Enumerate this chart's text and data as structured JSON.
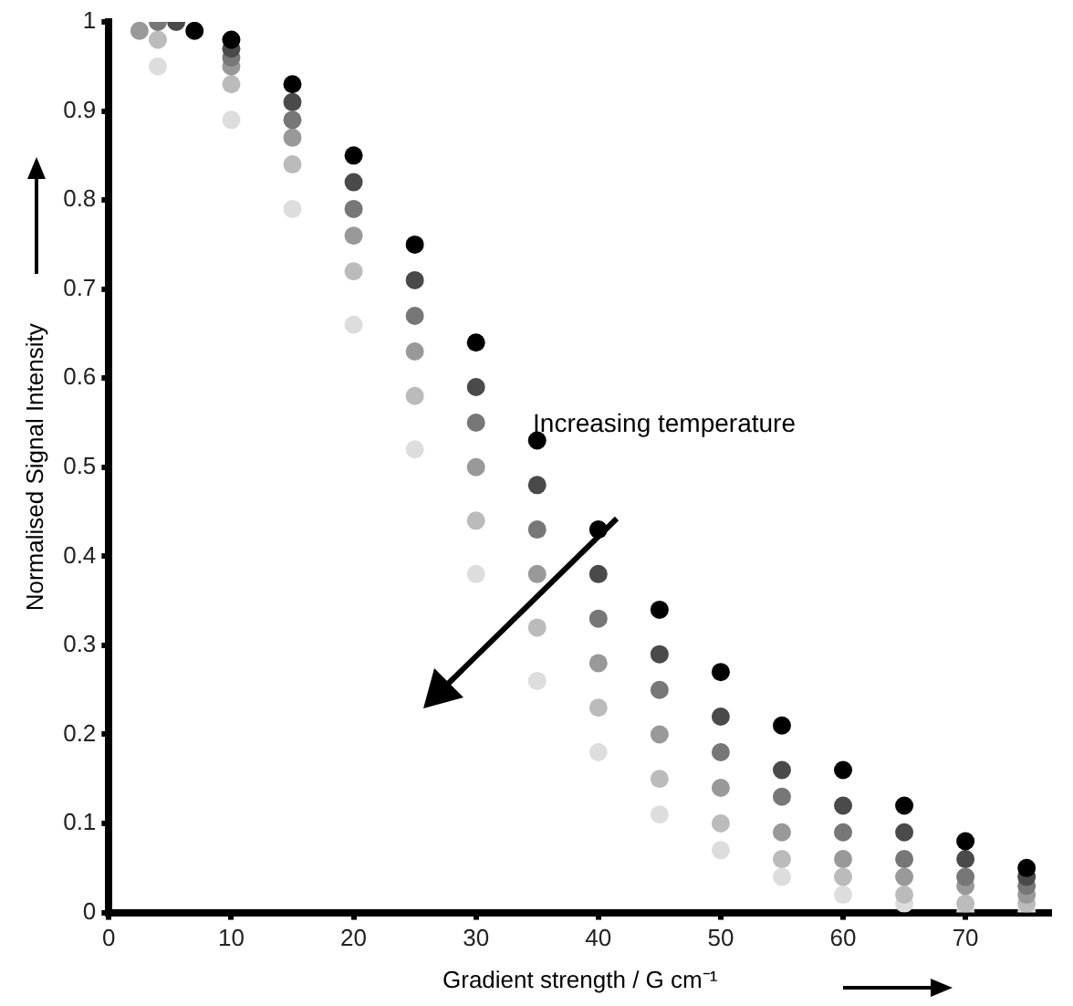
{
  "chart_data": {
    "type": "scatter",
    "xlabel": "Gradient strength / G cm⁻¹",
    "ylabel": "Normalised Signal Intensity",
    "x": [
      4,
      10,
      15,
      20,
      25,
      30,
      35,
      40,
      45,
      50,
      55,
      60,
      65,
      70,
      75
    ],
    "series": [
      {
        "color": "#000000",
        "x": [
          7,
          10,
          15,
          20,
          25,
          30,
          35,
          40,
          45,
          50,
          55,
          60,
          65,
          70,
          75
        ],
        "values": [
          0.99,
          0.98,
          0.93,
          0.85,
          0.75,
          0.64,
          0.53,
          0.43,
          0.34,
          0.27,
          0.21,
          0.16,
          0.12,
          0.08,
          0.05
        ]
      },
      {
        "color": "#4a4a4a",
        "x": [
          5.5,
          10,
          15,
          20,
          25,
          30,
          35,
          40,
          45,
          50,
          55,
          60,
          65,
          70,
          75
        ],
        "values": [
          1.0,
          0.97,
          0.91,
          0.82,
          0.71,
          0.59,
          0.48,
          0.38,
          0.29,
          0.22,
          0.16,
          0.12,
          0.09,
          0.06,
          0.04
        ]
      },
      {
        "color": "#777777",
        "x": [
          4,
          10,
          15,
          20,
          25,
          30,
          35,
          40,
          45,
          50,
          55,
          60,
          65,
          70,
          75
        ],
        "values": [
          1.0,
          0.96,
          0.89,
          0.79,
          0.67,
          0.55,
          0.43,
          0.33,
          0.25,
          0.18,
          0.13,
          0.09,
          0.06,
          0.04,
          0.03
        ]
      },
      {
        "color": "#999999",
        "x": [
          2.5,
          10,
          15,
          20,
          25,
          30,
          35,
          40,
          45,
          50,
          55,
          60,
          65,
          70,
          75
        ],
        "values": [
          0.99,
          0.95,
          0.87,
          0.76,
          0.63,
          0.5,
          0.38,
          0.28,
          0.2,
          0.14,
          0.09,
          0.06,
          0.04,
          0.03,
          0.02
        ]
      },
      {
        "color": "#bbbbbb",
        "values": [
          0.98,
          0.93,
          0.84,
          0.72,
          0.58,
          0.44,
          0.32,
          0.23,
          0.15,
          0.1,
          0.06,
          0.04,
          0.02,
          0.01,
          0.01
        ]
      },
      {
        "color": "#dddddd",
        "values": [
          0.95,
          0.89,
          0.79,
          0.66,
          0.52,
          0.38,
          0.26,
          0.18,
          0.11,
          0.07,
          0.04,
          0.02,
          0.01,
          0.0,
          0.0
        ]
      }
    ],
    "xlim": [
      0,
      77
    ],
    "ylim": [
      0,
      1
    ],
    "xticks": [
      0,
      10,
      20,
      30,
      40,
      50,
      60,
      70
    ],
    "yticks": [
      0,
      0.1,
      0.2,
      0.3,
      0.4,
      0.5,
      0.6,
      0.7,
      0.8,
      0.9,
      1
    ],
    "grid": false,
    "legend": false,
    "marker": "circle",
    "annotations": [
      "Increasing temperature"
    ]
  }
}
